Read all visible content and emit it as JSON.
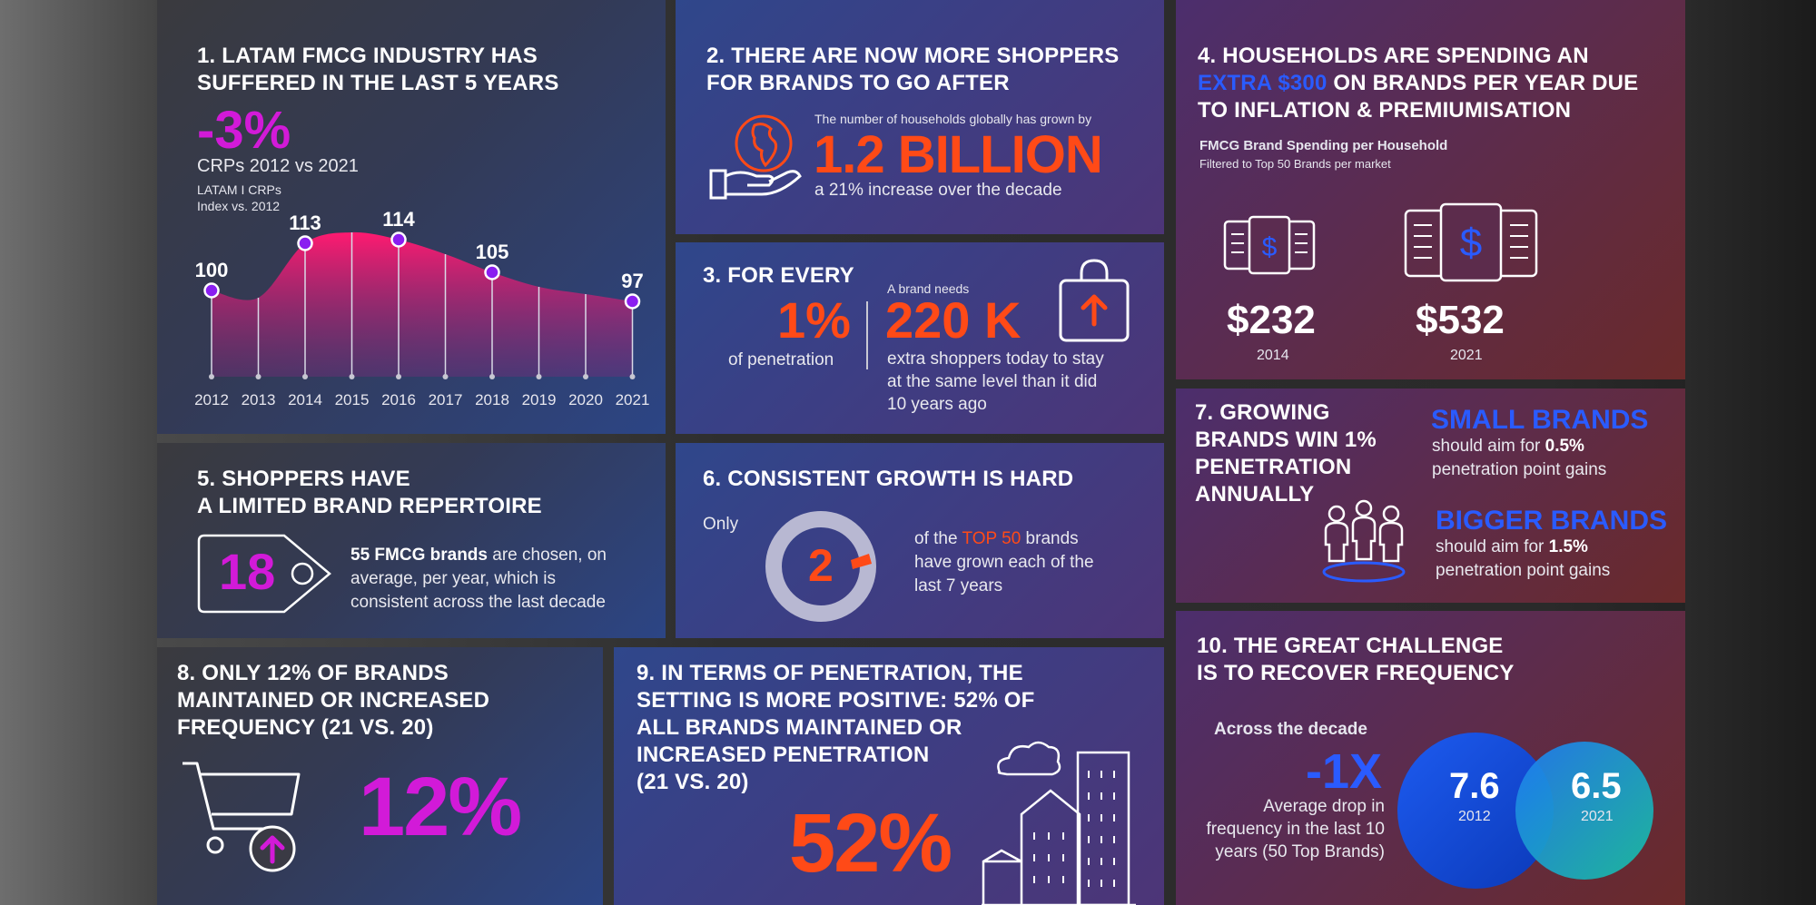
{
  "panel1": {
    "title_l1": "1. LATAM FMCG INDUSTRY HAS",
    "title_l2": "SUFFERED IN THE LAST 5 YEARS",
    "big": "-3%",
    "subtitle": "CRPs 2012 vs 2021",
    "note_l1": "LATAM I CRPs",
    "note_l2": "Index vs. 2012"
  },
  "chart_data": {
    "type": "area",
    "x": [
      "2012",
      "2013",
      "2014",
      "2015",
      "2016",
      "2017",
      "2018",
      "2019",
      "2020",
      "2021"
    ],
    "values": [
      100,
      98,
      113,
      116,
      114,
      110,
      105,
      101,
      99,
      97
    ],
    "labeled_points": [
      {
        "x": "2012",
        "label": "100"
      },
      {
        "x": "2014",
        "label": "113"
      },
      {
        "x": "2016",
        "label": "114"
      },
      {
        "x": "2018",
        "label": "105"
      },
      {
        "x": "2021",
        "label": "97"
      }
    ],
    "colors": {
      "area_top": "#ff1a70",
      "area_bottom": "#7a2a7a",
      "marker": "#8a1ef0"
    }
  },
  "panel2": {
    "title_l1": "2. THERE ARE NOW MORE SHOPPERS",
    "title_l2": "FOR BRANDS TO GO AFTER",
    "intro": "The number of households globally has grown by",
    "big": "1.2 BILLION",
    "sub": "a 21% increase over the decade",
    "icon": "globe-in-hand-icon"
  },
  "panel3": {
    "title": "3. FOR EVERY",
    "pct": "1%",
    "pct_label": "of penetration",
    "need": "A brand needs",
    "big": "220 K",
    "desc_l1": "extra shoppers today to stay",
    "desc_l2": "at the same level than it did",
    "desc_l3": "10 years ago",
    "icon": "shopping-bag-up-icon"
  },
  "panel4": {
    "title_l1": "4. HOUSEHOLDS ARE SPENDING AN",
    "title_l2a": "EXTRA $300",
    "title_l2b": " ON BRANDS PER YEAR DUE",
    "title_l3": "TO INFLATION & PREMIUMISATION",
    "sub1": "FMCG Brand Spending per Household",
    "sub2": "Filtered to Top 50 Brands per market",
    "v1": "$232",
    "y1": "2014",
    "v2": "$532",
    "y2": "2021",
    "accent": "#2a5bff"
  },
  "panel5": {
    "title_l1": "5. SHOPPERS HAVE",
    "title_l2": "A LIMITED BRAND REPERTOIRE",
    "tag": "18",
    "desc_b": "55 FMCG brands",
    "desc_a": " are chosen, on",
    "desc_l2": "average, per year, which is",
    "desc_l3": "consistent across the last decade"
  },
  "panel6": {
    "title": "6. CONSISTENT GROWTH IS HARD",
    "only": "Only",
    "num": "2",
    "desc_a": "of the ",
    "desc_hl": "TOP 50",
    "desc_b": " brands",
    "desc_l2": "have grown each of the",
    "desc_l3": "last 7 years"
  },
  "panel7": {
    "title_l1": "7. GROWING",
    "title_l2": "BRANDS WIN 1%",
    "title_l3": "PENETRATION",
    "title_l4": "ANNUALLY",
    "small_h": "SMALL BRANDS",
    "small_a": "should aim for ",
    "small_b": "0.5%",
    "small_c": "penetration point gains",
    "big_h": "BIGGER BRANDS",
    "big_a": "should aim for ",
    "big_b": "1.5%",
    "big_c": "penetration point gains"
  },
  "panel8": {
    "title_l1": "8. ONLY 12% OF BRANDS",
    "title_l2": "MAINTAINED OR INCREASED",
    "title_l3": "FREQUENCY (21 vs. 20)",
    "big": "12%"
  },
  "panel9": {
    "title_l1": "9. IN TERMS OF PENETRATION, THE",
    "title_l2": "SETTING IS MORE POSITIVE: 52% OF",
    "title_l3": "ALL BRANDS MAINTAINED OR",
    "title_l4": "INCREASED PENETRATION",
    "title_l5": "(21 vs. 20)",
    "big": "52%"
  },
  "panel10": {
    "title_l1": "10. THE GREAT CHALLENGE",
    "title_l2": "IS TO RECOVER FREQUENCY",
    "across": "Across the decade",
    "big": "-1X",
    "desc_l1": "Average drop in",
    "desc_l2": "frequency in the last 10",
    "desc_l3": "years (50 Top Brands)",
    "c1_val": "7.6",
    "c1_year": "2012",
    "c2_val": "6.5",
    "c2_year": "2021"
  }
}
